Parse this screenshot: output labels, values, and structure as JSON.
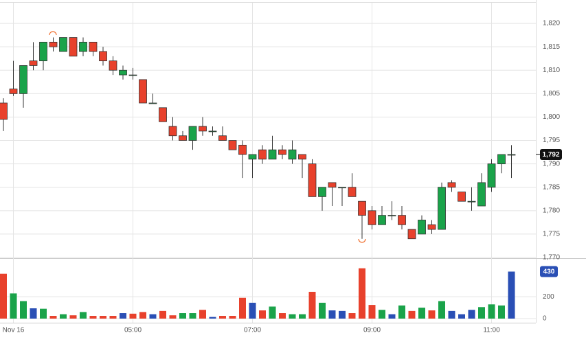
{
  "chart_data": {
    "type": "candlestick",
    "categories": [
      null,
      "Nov 16",
      null,
      null,
      null,
      null,
      null,
      null,
      null,
      null,
      null,
      null,
      null,
      "05:00",
      null,
      null,
      null,
      null,
      null,
      null,
      null,
      null,
      null,
      null,
      null,
      "07:00",
      null,
      null,
      null,
      null,
      null,
      null,
      null,
      null,
      null,
      null,
      null,
      "09:00",
      null,
      null,
      null,
      null,
      null,
      null,
      null,
      null,
      null,
      null,
      null,
      "11:00",
      null,
      null
    ],
    "open": [
      1803,
      1806,
      1805,
      1812,
      1812,
      1816,
      1814,
      1817,
      1814,
      1816,
      1814,
      1812,
      1809,
      1809,
      1808,
      1803,
      1802,
      1798,
      1796,
      1795,
      1798,
      1797,
      1796,
      1795,
      1794,
      1791,
      1793,
      1791,
      1793,
      1791,
      1792,
      1790,
      1783,
      1786,
      1785,
      1785,
      1782,
      1780,
      1777,
      1779,
      1779,
      1776,
      1775,
      1777,
      1776,
      1786,
      1784,
      1782,
      1781,
      1785,
      1790,
      1792
    ],
    "high": [
      1804,
      1812,
      1811,
      1816,
      1816,
      1817,
      1817,
      1817,
      1817,
      1816,
      1815,
      1813,
      1811,
      1810.5,
      1808,
      1805,
      1802,
      1800,
      1797,
      1798,
      1800,
      1798,
      1798,
      1795,
      1795,
      1792,
      1794,
      1796,
      1794,
      1795,
      1792,
      1791,
      1785,
      1786,
      1785,
      1788,
      1782,
      1781,
      1781,
      1782,
      1781,
      1776,
      1779,
      1778,
      1786,
      1786.5,
      1784,
      1785,
      1788,
      1791,
      1792,
      1794
    ],
    "low": [
      1797,
      1804.5,
      1802,
      1810,
      1810,
      1814,
      1814,
      1813,
      1813,
      1813,
      1811,
      1809,
      1808,
      1808,
      1803,
      1803,
      1799,
      1795,
      1795,
      1793,
      1796,
      1796,
      1795,
      1793,
      1787,
      1787,
      1790,
      1791,
      1791,
      1790,
      1787,
      1783,
      1780,
      1781,
      1781,
      1783,
      1774,
      1776,
      1777,
      1778,
      1776,
      1774,
      1775,
      1775,
      1776,
      1784,
      1782,
      1780,
      1781,
      1784,
      1788,
      1787
    ],
    "close": [
      1799.5,
      1805,
      1811,
      1811,
      1816,
      1815,
      1817,
      1813,
      1816,
      1814,
      1812,
      1810,
      1810,
      1809,
      1803,
      1803,
      1799,
      1796,
      1795,
      1798,
      1797,
      1797,
      1795,
      1793,
      1792,
      1792,
      1791,
      1793,
      1792,
      1793,
      1791,
      1783,
      1785,
      1785,
      1785,
      1783,
      1779,
      1777,
      1779,
      1779,
      1777,
      1774,
      1778,
      1776,
      1785,
      1785,
      1782,
      1782,
      1786,
      1790,
      1792,
      1792
    ],
    "up_color": "#1aa34a",
    "down_color": "#e8412c",
    "ylim": [
      1770,
      1825
    ],
    "yticks": [
      {
        "value": 1820,
        "label": "1,820"
      },
      {
        "value": 1815,
        "label": "1,815"
      },
      {
        "value": 1810,
        "label": "1,810"
      },
      {
        "value": 1805,
        "label": "1,805"
      },
      {
        "value": 1800,
        "label": "1,800"
      },
      {
        "value": 1795,
        "label": "1,795"
      },
      {
        "value": 1790,
        "label": "1,790"
      },
      {
        "value": 1785,
        "label": "1,785"
      },
      {
        "value": 1780,
        "label": "1,780"
      },
      {
        "value": 1775,
        "label": "1,775"
      },
      {
        "value": 1770,
        "label": "1,770"
      }
    ],
    "price_label": {
      "value": 1792,
      "label": "1,792"
    },
    "volume": {
      "values": [
        410,
        230,
        160,
        94,
        90,
        25,
        40,
        30,
        60,
        25,
        25,
        25,
        50,
        45,
        60,
        40,
        70,
        30,
        50,
        50,
        80,
        15,
        25,
        25,
        190,
        145,
        75,
        110,
        50,
        40,
        40,
        245,
        145,
        75,
        70,
        50,
        460,
        125,
        80,
        40,
        120,
        70,
        100,
        75,
        160,
        70,
        40,
        80,
        105,
        130,
        120,
        430
      ],
      "colors": [
        "#e8412c",
        "#1aa34a",
        "#1aa34a",
        "#2a4fb5",
        "#1aa34a",
        "#e8412c",
        "#1aa34a",
        "#e8412c",
        "#1aa34a",
        "#e8412c",
        "#e8412c",
        "#e8412c",
        "#2a4fb5",
        "#e8412c",
        "#e8412c",
        "#2a4fb5",
        "#e8412c",
        "#e8412c",
        "#1aa34a",
        "#1aa34a",
        "#e8412c",
        "#2a4fb5",
        "#e8412c",
        "#e8412c",
        "#e8412c",
        "#2a4fb5",
        "#e8412c",
        "#1aa34a",
        "#e8412c",
        "#1aa34a",
        "#1aa34a",
        "#e8412c",
        "#1aa34a",
        "#2a4fb5",
        "#2a4fb5",
        "#e8412c",
        "#e8412c",
        "#e8412c",
        "#1aa34a",
        "#2a4fb5",
        "#1aa34a",
        "#e8412c",
        "#1aa34a",
        "#e8412c",
        "#1aa34a",
        "#2a4fb5",
        "#2a4fb5",
        "#2a4fb5",
        "#1aa34a",
        "#1aa34a",
        "#1aa34a",
        "#2a4fb5"
      ],
      "ylim": [
        0,
        540
      ],
      "yticks": [
        0,
        200
      ]
    }
  }
}
